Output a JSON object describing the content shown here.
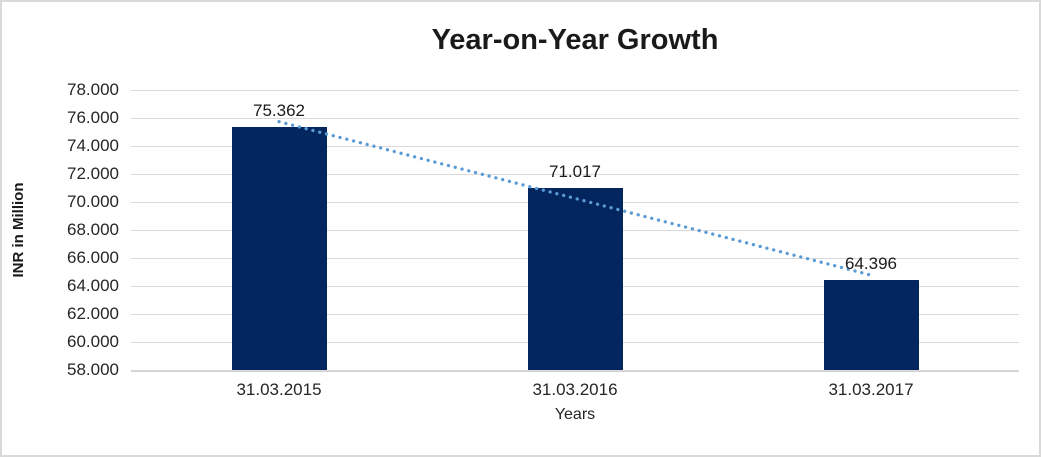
{
  "frame": {
    "background": "#ffffff",
    "border_color": "#d9d9d9"
  },
  "chart_data": {
    "type": "bar",
    "title": "Year-on-Year Growth",
    "xlabel": "Years",
    "ylabel": "INR in Million",
    "categories": [
      "31.03.2015",
      "31.03.2016",
      "31.03.2017"
    ],
    "values": [
      75362,
      71017,
      64396
    ],
    "data_labels": [
      "75.362",
      "71.017",
      "64.396"
    ],
    "ylim": [
      58000,
      78000
    ],
    "ytick_step": 2000,
    "ytick_labels": [
      "78.000",
      "76.000",
      "74.000",
      "72.000",
      "70.000",
      "68.000",
      "66.000",
      "64.000",
      "62.000",
      "60.000",
      "58.000"
    ],
    "grid": true,
    "legend": "none",
    "bar_color": "#04265e",
    "gridline_color": "#d9d9d9",
    "axis_line_color": "#d2d2d2",
    "trendline": {
      "type": "linear",
      "style": "dotted",
      "color": "#5b9bd5"
    }
  }
}
